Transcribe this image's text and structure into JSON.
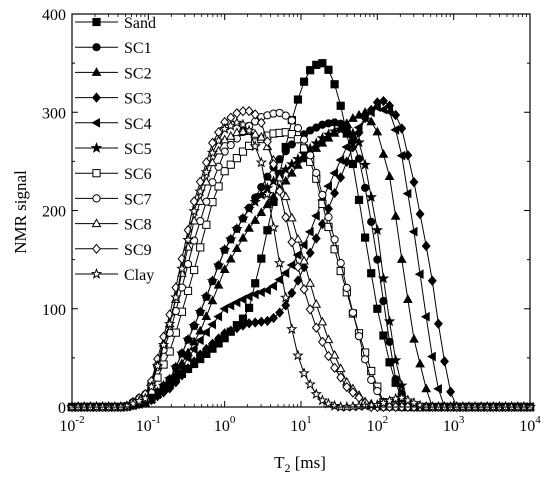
{
  "chart_data": {
    "type": "line",
    "title": "",
    "xlabel": {
      "main": "T",
      "sub": "2",
      "rest": " [ms]"
    },
    "ylabel": "NMR signal",
    "xscale": "log",
    "xlim": [
      0.01,
      10000
    ],
    "ylim": [
      0,
      400
    ],
    "yticks": [
      "0",
      "100",
      "200",
      "300",
      "400"
    ],
    "xticks": [
      {
        "base": "10",
        "exp": "-2"
      },
      {
        "base": "10",
        "exp": "-1"
      },
      {
        "base": "10",
        "exp": "0"
      },
      {
        "base": "10",
        "exp": "1"
      },
      {
        "base": "10",
        "exp": "2"
      },
      {
        "base": "10",
        "exp": "3"
      },
      {
        "base": "10",
        "exp": "4"
      }
    ],
    "grid": false,
    "legend_position": "top-left",
    "color": "#000000",
    "series": [
      {
        "name": "Sand",
        "marker": "square-filled",
        "x": [
          0.01,
          0.05,
          0.1,
          0.2,
          0.5,
          1,
          2,
          3,
          5,
          8,
          12,
          18,
          25,
          35,
          50,
          70,
          100,
          150,
          200,
          300,
          400,
          10000
        ],
        "y": [
          0,
          0,
          8,
          25,
          50,
          70,
          95,
          150,
          230,
          300,
          340,
          352,
          340,
          300,
          240,
          170,
          100,
          40,
          10,
          0,
          0,
          0
        ]
      },
      {
        "name": "SC1",
        "marker": "circle-filled",
        "x": [
          0.01,
          0.05,
          0.1,
          0.2,
          0.5,
          1,
          2,
          4,
          7,
          12,
          20,
          30,
          40,
          55,
          75,
          100,
          130,
          170,
          250,
          10000
        ],
        "y": [
          0,
          0,
          5,
          30,
          100,
          160,
          200,
          240,
          265,
          280,
          288,
          290,
          285,
          260,
          210,
          150,
          90,
          30,
          0,
          0
        ]
      },
      {
        "name": "SC2",
        "marker": "triangle-up-filled",
        "x": [
          0.01,
          0.05,
          0.1,
          0.2,
          0.5,
          1,
          2,
          5,
          10,
          20,
          35,
          50,
          70,
          100,
          150,
          200,
          300,
          500,
          10000
        ],
        "y": [
          0,
          0,
          5,
          25,
          80,
          140,
          180,
          220,
          250,
          270,
          285,
          295,
          300,
          280,
          230,
          160,
          70,
          0,
          0
        ]
      },
      {
        "name": "SC3",
        "marker": "diamond-filled",
        "x": [
          0.01,
          0.05,
          0.1,
          0.2,
          0.5,
          1,
          2,
          4,
          6,
          10,
          20,
          40,
          70,
          100,
          130,
          200,
          300,
          500,
          700,
          1000,
          10000
        ],
        "y": [
          0,
          0,
          5,
          20,
          55,
          75,
          85,
          88,
          100,
          135,
          190,
          250,
          295,
          310,
          312,
          290,
          230,
          140,
          60,
          0,
          0
        ]
      },
      {
        "name": "SC4",
        "marker": "triangle-left-filled",
        "x": [
          0.01,
          0.05,
          0.1,
          0.2,
          0.5,
          1,
          2,
          4,
          7,
          12,
          20,
          40,
          70,
          100,
          150,
          200,
          300,
          500,
          700,
          10000
        ],
        "y": [
          0,
          0,
          5,
          25,
          70,
          100,
          112,
          120,
          140,
          170,
          215,
          265,
          295,
          305,
          300,
          265,
          180,
          60,
          0,
          0
        ]
      },
      {
        "name": "SC5",
        "marker": "star-filled",
        "x": [
          0.01,
          0.05,
          0.1,
          0.2,
          0.5,
          1,
          2,
          5,
          10,
          20,
          30,
          40,
          55,
          70,
          100,
          130,
          180,
          250,
          10000
        ],
        "y": [
          0,
          0,
          5,
          30,
          100,
          160,
          200,
          235,
          255,
          275,
          282,
          283,
          275,
          245,
          180,
          110,
          40,
          0,
          0
        ]
      },
      {
        "name": "SC6",
        "marker": "square-open",
        "x": [
          0.01,
          0.05,
          0.1,
          0.2,
          0.4,
          0.7,
          1,
          2,
          4,
          7,
          10,
          15,
          20,
          30,
          50,
          80,
          120,
          200,
          10000
        ],
        "y": [
          0,
          0,
          10,
          60,
          140,
          210,
          240,
          265,
          278,
          280,
          270,
          240,
          200,
          150,
          90,
          40,
          5,
          0,
          0
        ]
      },
      {
        "name": "SC7",
        "marker": "circle-open",
        "x": [
          0.01,
          0.05,
          0.1,
          0.2,
          0.4,
          0.7,
          1,
          2,
          3,
          5,
          7,
          10,
          15,
          20,
          30,
          50,
          80,
          130,
          10000
        ],
        "y": [
          0,
          0,
          15,
          80,
          170,
          230,
          260,
          285,
          295,
          300,
          295,
          280,
          245,
          210,
          160,
          90,
          30,
          0,
          0
        ]
      },
      {
        "name": "SC8",
        "marker": "triangle-up-open",
        "x": [
          0.01,
          0.05,
          0.1,
          0.2,
          0.4,
          0.7,
          1,
          1.5,
          2,
          3,
          4,
          6,
          10,
          15,
          25,
          40,
          70,
          110,
          10000
        ],
        "y": [
          0,
          0,
          15,
          90,
          190,
          250,
          272,
          280,
          281,
          275,
          260,
          220,
          160,
          110,
          60,
          25,
          5,
          0,
          0
        ]
      },
      {
        "name": "SC9",
        "marker": "diamond-open",
        "x": [
          0.01,
          0.05,
          0.1,
          0.2,
          0.4,
          0.7,
          1,
          1.5,
          2,
          2.5,
          3,
          4,
          6,
          10,
          15,
          25,
          40,
          80,
          10000
        ],
        "y": [
          0,
          0,
          15,
          100,
          210,
          270,
          290,
          300,
          302,
          298,
          290,
          260,
          200,
          130,
          85,
          45,
          20,
          0,
          0
        ]
      },
      {
        "name": "Clay",
        "marker": "star-open",
        "x": [
          0.01,
          0.05,
          0.1,
          0.2,
          0.4,
          0.7,
          1,
          1.5,
          2,
          3,
          4,
          6,
          8,
          10,
          15,
          20,
          30,
          40,
          100,
          200,
          400,
          10000
        ],
        "y": [
          0,
          0,
          10,
          90,
          200,
          260,
          283,
          290,
          285,
          250,
          200,
          120,
          70,
          40,
          15,
          5,
          0,
          0,
          2,
          10,
          0,
          0
        ]
      }
    ]
  }
}
